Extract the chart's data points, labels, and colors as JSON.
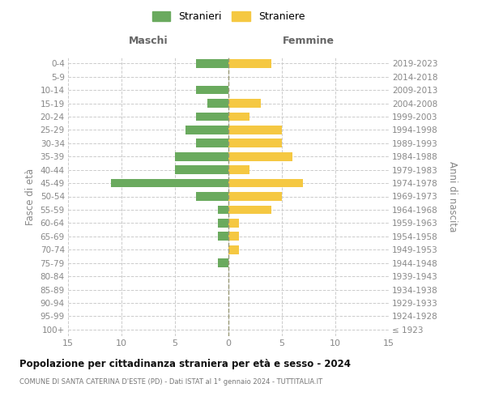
{
  "age_groups": [
    "100+",
    "95-99",
    "90-94",
    "85-89",
    "80-84",
    "75-79",
    "70-74",
    "65-69",
    "60-64",
    "55-59",
    "50-54",
    "45-49",
    "40-44",
    "35-39",
    "30-34",
    "25-29",
    "20-24",
    "15-19",
    "10-14",
    "5-9",
    "0-4"
  ],
  "birth_years": [
    "≤ 1923",
    "1924-1928",
    "1929-1933",
    "1934-1938",
    "1939-1943",
    "1944-1948",
    "1949-1953",
    "1954-1958",
    "1959-1963",
    "1964-1968",
    "1969-1973",
    "1974-1978",
    "1979-1983",
    "1984-1988",
    "1989-1993",
    "1994-1998",
    "1999-2003",
    "2004-2008",
    "2009-2013",
    "2014-2018",
    "2019-2023"
  ],
  "males": [
    0,
    0,
    0,
    0,
    0,
    1,
    0,
    1,
    1,
    1,
    3,
    11,
    5,
    5,
    3,
    4,
    3,
    2,
    3,
    0,
    3
  ],
  "females": [
    0,
    0,
    0,
    0,
    0,
    0,
    1,
    1,
    1,
    4,
    5,
    7,
    2,
    6,
    5,
    5,
    2,
    3,
    0,
    0,
    4
  ],
  "male_color": "#6aaa5e",
  "female_color": "#f5c842",
  "title": "Popolazione per cittadinanza straniera per età e sesso - 2024",
  "subtitle": "COMUNE DI SANTA CATERINA D'ESTE (PD) - Dati ISTAT al 1° gennaio 2024 - TUTTITALIA.IT",
  "label_maschi": "Maschi",
  "label_femmine": "Femmine",
  "ylabel_left": "Fasce di età",
  "ylabel_right": "Anni di nascita",
  "legend_stranieri": "Stranieri",
  "legend_straniere": "Straniere",
  "xlim": 15,
  "background_color": "#ffffff",
  "grid_color": "#cccccc",
  "tick_color": "#888888"
}
